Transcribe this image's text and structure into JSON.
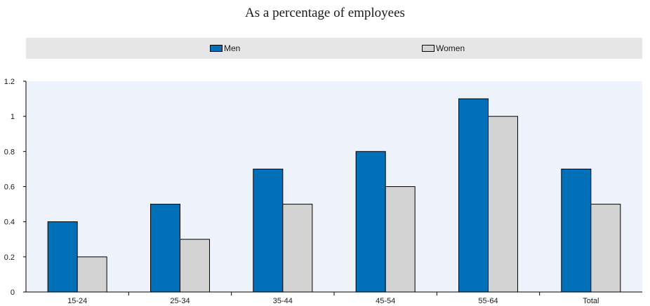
{
  "chart_data": {
    "type": "bar",
    "title": "As a percentage of employees",
    "xlabel": "",
    "ylabel": "",
    "categories": [
      "15-24",
      "25-34",
      "35-44",
      "45-54",
      "55-64",
      "Total"
    ],
    "series": [
      {
        "name": "Men",
        "color": "#0070b9",
        "values": [
          0.4,
          0.5,
          0.7,
          0.8,
          1.1,
          0.7
        ]
      },
      {
        "name": "Women",
        "color": "#d3d3d3",
        "values": [
          0.2,
          0.3,
          0.5,
          0.6,
          1.0,
          0.5
        ]
      }
    ],
    "ylim": [
      0,
      1.2
    ],
    "yticks": [
      "0",
      "0.2",
      "0.4",
      "0.6",
      "0.8",
      "1",
      "1.2"
    ],
    "grid": false,
    "legend_position": "top",
    "plot_background": "#eef3fb"
  }
}
